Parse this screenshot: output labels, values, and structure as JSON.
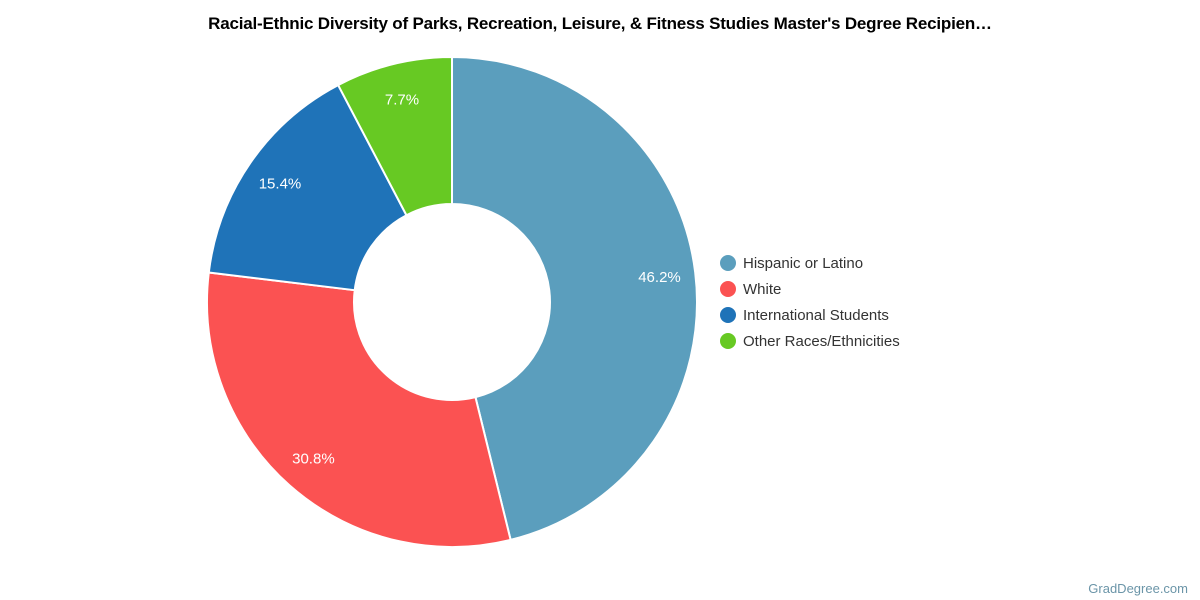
{
  "title": "Racial-Ethnic Diversity of Parks, Recreation, Leisure, & Fitness Studies Master's Degree Recipien…",
  "watermark": "GradDegree.com",
  "chart_data": {
    "type": "pie",
    "subtype": "donut",
    "title": "Racial-Ethnic Diversity of Parks, Recreation, Leisure, & Fitness Studies Master's Degree Recipien…",
    "legend_position": "right",
    "start_angle_deg": 0,
    "direction": "clockwise",
    "label_color": "#FFFFFF",
    "background_color": "#FFFFFF",
    "slices": [
      {
        "label": "Hispanic or Latino",
        "value": 46.2,
        "pct_label": "46.2%",
        "color": "#5B9EBD"
      },
      {
        "label": "White",
        "value": 30.8,
        "pct_label": "30.8%",
        "color": "#FB5252"
      },
      {
        "label": "International Students",
        "value": 15.4,
        "pct_label": "15.4%",
        "color": "#1F73B8"
      },
      {
        "label": "Other Races/Ethnicities",
        "value": 7.7,
        "pct_label": "7.7%",
        "color": "#67C923"
      }
    ]
  }
}
